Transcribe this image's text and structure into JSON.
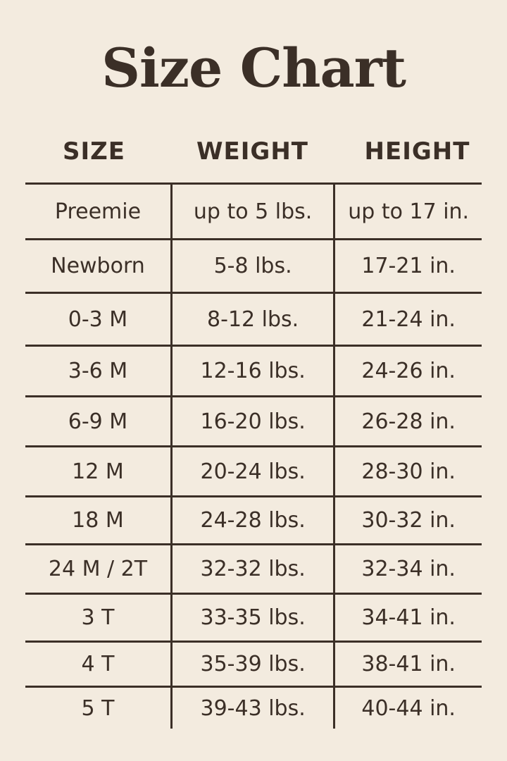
{
  "title": "Size Chart",
  "headers": [
    "SIZE",
    "WEIGHT",
    "HEIGHT"
  ],
  "rows": [
    [
      "Preemie",
      "up to 5 lbs.",
      "up to 17 in."
    ],
    [
      "Newborn",
      "5-8 lbs.",
      "17-21 in."
    ],
    [
      "0-3 M",
      "8-12 lbs.",
      "21-24 in."
    ],
    [
      "3-6 M",
      "12-16 lbs.",
      "24-26 in."
    ],
    [
      "6-9 M",
      "16-20 lbs.",
      "26-28 in."
    ],
    [
      "12 M",
      "20-24 lbs.",
      "28-30 in."
    ],
    [
      "18 M",
      "24-28 lbs.",
      "30-32 in."
    ],
    [
      "24 M / 2T",
      "32-32 lbs.",
      "32-34 in."
    ],
    [
      "3 T",
      "33-35 lbs.",
      "34-41 in."
    ],
    [
      "4 T",
      "35-39 lbs.",
      "38-41 in."
    ],
    [
      "5 T",
      "39-43 lbs.",
      "40-44 in."
    ]
  ],
  "colors": {
    "background": "#f3ebdf",
    "text": "#3b2f27"
  }
}
